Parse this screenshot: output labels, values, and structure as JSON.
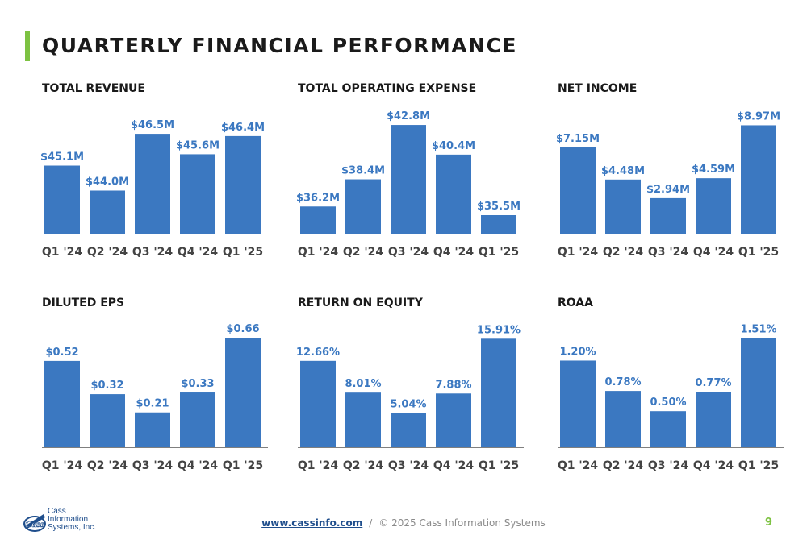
{
  "slide": {
    "title": "QUARTERLY FINANCIAL PERFORMANCE",
    "accent_color": "#7dc242",
    "bar_color": "#3b78c1",
    "label_color": "#3b78c1",
    "page_number": "9"
  },
  "footer": {
    "link_text": "www.cassinfo.com",
    "separator": "/",
    "copyright": "© 2025 Cass Information Systems",
    "logo_mark": "Cass",
    "logo_lines": [
      "Cass",
      "Information",
      "Systems, Inc."
    ]
  },
  "chart_data": [
    {
      "type": "bar",
      "title": "TOTAL REVENUE",
      "categories": [
        "Q1 '24",
        "Q2 '24",
        "Q3 '24",
        "Q4 '24",
        "Q1 '25"
      ],
      "values": [
        45.1,
        44.0,
        46.5,
        45.6,
        46.4
      ],
      "data_labels": [
        "$45.1M",
        "$44.0M",
        "$46.5M",
        "$45.6M",
        "$46.4M"
      ],
      "xlabel": "",
      "ylabel": "",
      "ylim": [
        42.1,
        47.0
      ],
      "grid": false,
      "legend": "none"
    },
    {
      "type": "bar",
      "title": "TOTAL OPERATING EXPENSE",
      "categories": [
        "Q1 '24",
        "Q2 '24",
        "Q3 '24",
        "Q4 '24",
        "Q1 '25"
      ],
      "values": [
        36.2,
        38.4,
        42.8,
        40.4,
        35.5
      ],
      "data_labels": [
        "$36.2M",
        "$38.4M",
        "$42.8M",
        "$40.4M",
        "$35.5M"
      ],
      "xlabel": "",
      "ylabel": "",
      "ylim": [
        34.0,
        43.0
      ],
      "grid": false,
      "legend": "none"
    },
    {
      "type": "bar",
      "title": "NET INCOME",
      "categories": [
        "Q1 '24",
        "Q2 '24",
        "Q3 '24",
        "Q4 '24",
        "Q1 '25"
      ],
      "values": [
        7.15,
        4.48,
        2.94,
        4.59,
        8.97
      ],
      "data_labels": [
        "$7.15M",
        "$4.48M",
        "$2.94M",
        "$4.59M",
        "$8.97M"
      ],
      "xlabel": "",
      "ylabel": "",
      "ylim": [
        0,
        9.2
      ],
      "grid": false,
      "legend": "none"
    },
    {
      "type": "bar",
      "title": "DILUTED EPS",
      "categories": [
        "Q1 '24",
        "Q2 '24",
        "Q3 '24",
        "Q4 '24",
        "Q1 '25"
      ],
      "values": [
        0.52,
        0.32,
        0.21,
        0.33,
        0.66
      ],
      "data_labels": [
        "$0.52",
        "$0.32",
        "$0.21",
        "$0.33",
        "$0.66"
      ],
      "xlabel": "",
      "ylabel": "",
      "ylim": [
        0,
        0.67
      ],
      "grid": false,
      "legend": "none"
    },
    {
      "type": "bar",
      "title": "RETURN ON EQUITY",
      "categories": [
        "Q1 '24",
        "Q2 '24",
        "Q3 '24",
        "Q4 '24",
        "Q1 '25"
      ],
      "values": [
        12.66,
        8.01,
        5.04,
        7.88,
        15.91
      ],
      "data_labels": [
        "12.66%",
        "8.01%",
        "5.04%",
        "7.88%",
        "15.91%"
      ],
      "xlabel": "",
      "ylabel": "",
      "ylim": [
        0,
        16.3
      ],
      "grid": false,
      "legend": "none"
    },
    {
      "type": "bar",
      "title": "ROAA",
      "categories": [
        "Q1 '24",
        "Q2 '24",
        "Q3 '24",
        "Q4 '24",
        "Q1 '25"
      ],
      "values": [
        1.2,
        0.78,
        0.5,
        0.77,
        1.51
      ],
      "data_labels": [
        "1.20%",
        "0.78%",
        "0.50%",
        "0.77%",
        "1.51%"
      ],
      "xlabel": "",
      "ylabel": "",
      "ylim": [
        0,
        1.54
      ],
      "grid": false,
      "legend": "none"
    }
  ]
}
